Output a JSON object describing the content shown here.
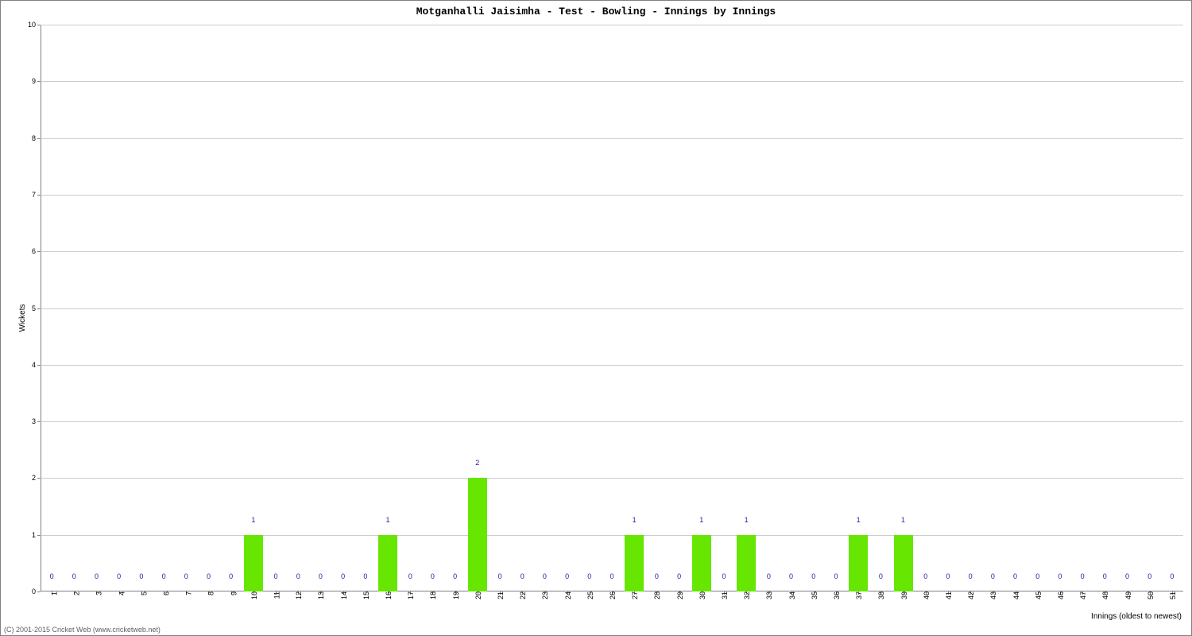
{
  "chart": {
    "type": "bar",
    "title": "Motganhalli Jaisimha - Test - Bowling - Innings by Innings",
    "title_fontsize": 13,
    "xlabel": "Innings (oldest to newest)",
    "ylabel": "Wickets",
    "label_fontsize": 10,
    "ylim": [
      0,
      10
    ],
    "ytick_step": 1,
    "categories": [
      "1",
      "2",
      "3",
      "4",
      "5",
      "6",
      "7",
      "8",
      "9",
      "10",
      "11",
      "12",
      "13",
      "14",
      "15",
      "16",
      "17",
      "18",
      "19",
      "20",
      "21",
      "22",
      "23",
      "24",
      "25",
      "26",
      "27",
      "28",
      "29",
      "30",
      "31",
      "32",
      "33",
      "34",
      "35",
      "36",
      "37",
      "38",
      "39",
      "40",
      "41",
      "42",
      "43",
      "44",
      "45",
      "46",
      "47",
      "48",
      "49",
      "50",
      "51"
    ],
    "values": [
      0,
      0,
      0,
      0,
      0,
      0,
      0,
      0,
      0,
      1,
      0,
      0,
      0,
      0,
      0,
      1,
      0,
      0,
      0,
      2,
      0,
      0,
      0,
      0,
      0,
      0,
      1,
      0,
      0,
      1,
      0,
      1,
      0,
      0,
      0,
      0,
      1,
      0,
      1,
      0,
      0,
      0,
      0,
      0,
      0,
      0,
      0,
      0,
      0,
      0,
      0
    ],
    "bar_color": "#66e600",
    "bar_width_ratio": 0.85,
    "barlabel_color": "#2020a0",
    "barlabel_fontsize": 9,
    "grid_color": "#cccccc",
    "axis_color": "#808080",
    "background_color": "#ffffff",
    "tick_fontsize": 9,
    "copyright": "(C) 2001-2015 Cricket Web (www.cricketweb.net)"
  }
}
